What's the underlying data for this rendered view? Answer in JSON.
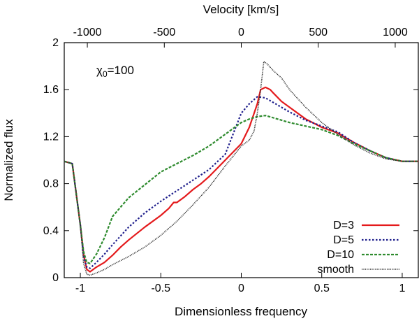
{
  "chart_data": {
    "type": "line",
    "xlabel": "Dimensionless frequency",
    "ylabel": "Normalized flux",
    "x2label": "Velocity [km/s]",
    "xlim": [
      -1.1,
      1.1
    ],
    "ylim": [
      0,
      2
    ],
    "xticks": [
      -1,
      -0.5,
      0,
      0.5,
      1
    ],
    "xtick_labels": [
      "-1",
      "-0.5",
      "0",
      "0.5",
      "1"
    ],
    "yticks": [
      0,
      0.4,
      0.8,
      1.2,
      1.6,
      2
    ],
    "ytick_labels": [
      "0",
      "0.4",
      "0.8",
      "1.2",
      "1.6",
      "2"
    ],
    "x2lim_kms": [
      -1150,
      1150
    ],
    "x2ticks": [
      -1000,
      -500,
      0,
      500,
      1000
    ],
    "x2tick_labels": [
      "-1000",
      "-500",
      "0",
      "500",
      "1000"
    ],
    "annotation": {
      "symbol": "χ",
      "subscript": "0",
      "rest": "=100"
    },
    "grid": false,
    "legend_position": "bottom-right",
    "series": [
      {
        "name": "D=3",
        "color": "#e41a1c",
        "style": "solid",
        "x": [
          -1.1,
          -1.05,
          -1.0,
          -0.98,
          -0.96,
          -0.94,
          -0.9,
          -0.85,
          -0.8,
          -0.75,
          -0.7,
          -0.6,
          -0.5,
          -0.45,
          -0.42,
          -0.4,
          -0.35,
          -0.3,
          -0.25,
          -0.2,
          -0.1,
          0.0,
          0.05,
          0.1,
          0.12,
          0.15,
          0.18,
          0.2,
          0.25,
          0.3,
          0.4,
          0.5,
          0.6,
          0.7,
          0.8,
          0.9,
          1.0,
          1.05,
          1.1
        ],
        "y": [
          0.99,
          0.97,
          0.45,
          0.2,
          0.07,
          0.05,
          0.09,
          0.13,
          0.19,
          0.26,
          0.32,
          0.43,
          0.53,
          0.59,
          0.64,
          0.64,
          0.69,
          0.75,
          0.8,
          0.86,
          1.0,
          1.14,
          1.28,
          1.48,
          1.6,
          1.62,
          1.6,
          1.57,
          1.5,
          1.45,
          1.35,
          1.28,
          1.23,
          1.15,
          1.08,
          1.02,
          0.99,
          0.99,
          0.99
        ]
      },
      {
        "name": "D=5",
        "color": "#1f1f8c",
        "style": "dotted",
        "x": [
          -1.1,
          -1.05,
          -1.0,
          -0.98,
          -0.96,
          -0.94,
          -0.9,
          -0.85,
          -0.8,
          -0.7,
          -0.6,
          -0.5,
          -0.4,
          -0.3,
          -0.2,
          -0.1,
          0.0,
          0.05,
          0.1,
          0.15,
          0.2,
          0.3,
          0.4,
          0.5,
          0.6,
          0.7,
          0.8,
          0.9,
          1.0,
          1.05,
          1.1
        ],
        "y": [
          0.99,
          0.97,
          0.45,
          0.18,
          0.09,
          0.08,
          0.13,
          0.2,
          0.28,
          0.43,
          0.55,
          0.65,
          0.74,
          0.83,
          0.92,
          1.05,
          1.4,
          1.48,
          1.54,
          1.53,
          1.49,
          1.41,
          1.34,
          1.29,
          1.24,
          1.15,
          1.08,
          1.02,
          0.99,
          0.99,
          0.99
        ]
      },
      {
        "name": "D=10",
        "color": "#2e8b2e",
        "style": "dashed",
        "x": [
          -1.1,
          -1.05,
          -1.0,
          -0.98,
          -0.96,
          -0.94,
          -0.9,
          -0.85,
          -0.8,
          -0.7,
          -0.6,
          -0.5,
          -0.4,
          -0.3,
          -0.2,
          -0.1,
          0.0,
          0.05,
          0.1,
          0.15,
          0.2,
          0.3,
          0.4,
          0.5,
          0.6,
          0.7,
          0.8,
          0.9,
          1.0,
          1.05,
          1.1
        ],
        "y": [
          0.99,
          0.97,
          0.45,
          0.22,
          0.13,
          0.12,
          0.2,
          0.34,
          0.52,
          0.68,
          0.79,
          0.9,
          0.97,
          1.04,
          1.12,
          1.22,
          1.32,
          1.35,
          1.37,
          1.38,
          1.36,
          1.32,
          1.29,
          1.26,
          1.21,
          1.14,
          1.08,
          1.02,
          0.99,
          0.99,
          0.99
        ]
      },
      {
        "name": "smooth",
        "color": "#333333",
        "style": "fine-dotted",
        "x": [
          -1.1,
          -1.05,
          -1.0,
          -0.98,
          -0.96,
          -0.94,
          -0.9,
          -0.85,
          -0.8,
          -0.7,
          -0.6,
          -0.5,
          -0.4,
          -0.3,
          -0.2,
          -0.1,
          0.0,
          0.05,
          0.08,
          0.1,
          0.12,
          0.14,
          0.16,
          0.2,
          0.25,
          0.3,
          0.4,
          0.5,
          0.6,
          0.7,
          0.8,
          0.9,
          1.0,
          1.05,
          1.1
        ],
        "y": [
          0.99,
          0.97,
          0.45,
          0.12,
          0.03,
          0.02,
          0.04,
          0.07,
          0.11,
          0.18,
          0.26,
          0.36,
          0.48,
          0.62,
          0.77,
          0.95,
          1.12,
          1.17,
          1.25,
          1.4,
          1.6,
          1.84,
          1.82,
          1.76,
          1.7,
          1.6,
          1.45,
          1.32,
          1.22,
          1.13,
          1.06,
          1.01,
          0.99,
          0.99,
          0.99
        ]
      }
    ]
  }
}
